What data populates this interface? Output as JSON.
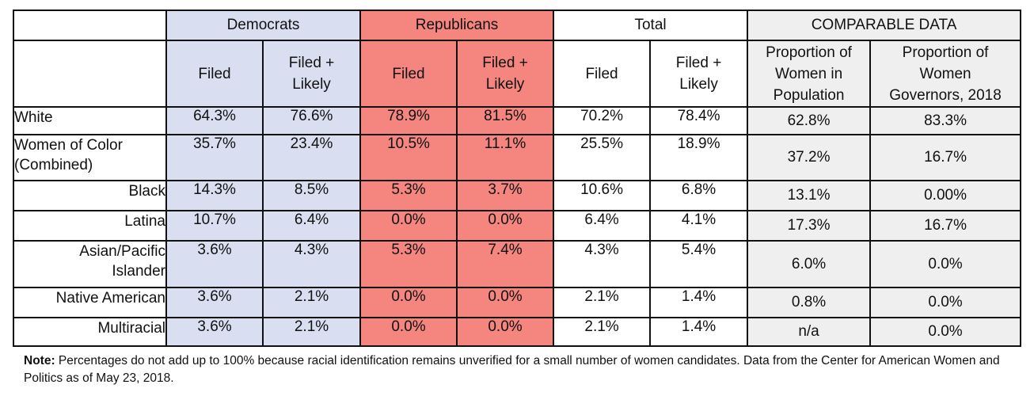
{
  "header": {
    "groups": [
      "Democrats",
      "Republicans",
      "Total",
      "COMPARABLE DATA"
    ],
    "sub": [
      [
        "Filed",
        "Filed +",
        "Likely"
      ],
      [
        "Proportion of",
        "Women in",
        "Population"
      ],
      [
        "Proportion of",
        "Women",
        "Governors, 2018"
      ]
    ],
    "filed": "Filed",
    "filed_likely_1": "Filed +",
    "filed_likely_2": "Likely",
    "pop_1": "Proportion of",
    "pop_2": "Women in",
    "pop_3": "Population",
    "gov_1": "Proportion of",
    "gov_2": "Women",
    "gov_3": "Governors, 2018"
  },
  "rows": [
    {
      "label": "White",
      "label2": "",
      "values": [
        "64.3%",
        "76.6%",
        "78.9%",
        "81.5%",
        "70.2%",
        "78.4%",
        "62.8%",
        "83.3%"
      ]
    },
    {
      "label": "Women of Color",
      "label2": "(Combined)",
      "values": [
        "35.7%",
        "23.4%",
        "10.5%",
        "11.1%",
        "25.5%",
        "18.9%",
        "37.2%",
        "16.7%"
      ]
    },
    {
      "label": "Black",
      "label2": "",
      "values": [
        "14.3%",
        "8.5%",
        "5.3%",
        "3.7%",
        "10.6%",
        "6.8%",
        "13.1%",
        "0.00%"
      ]
    },
    {
      "label": "Latina",
      "label2": "",
      "values": [
        "10.7%",
        "6.4%",
        "0.0%",
        "0.0%",
        "6.4%",
        "4.1%",
        "17.3%",
        "16.7%"
      ]
    },
    {
      "label": "Asian/Pacific",
      "label2": "Islander",
      "values": [
        "3.6%",
        "4.3%",
        "5.3%",
        "7.4%",
        "4.3%",
        "5.4%",
        "6.0%",
        "0.0%"
      ]
    },
    {
      "label": "Native American",
      "label2": "",
      "values": [
        "3.6%",
        "2.1%",
        "0.0%",
        "0.0%",
        "2.1%",
        "1.4%",
        "0.8%",
        "0.0%"
      ]
    },
    {
      "label": "Multiracial",
      "label2": "",
      "values": [
        "3.6%",
        "2.1%",
        "0.0%",
        "0.0%",
        "2.1%",
        "1.4%",
        "n/a",
        "0.0%"
      ]
    }
  ],
  "note": {
    "bold": "Note:",
    "text": " Percentages do not add up to 100% because racial identification remains unverified for a small number of women candidates. Data from the Center for American Women and Politics as of May 23, 2018."
  },
  "colors": {
    "democrats": "#d9dff1",
    "republicans": "#f4857f",
    "comparable": "#efefef"
  }
}
